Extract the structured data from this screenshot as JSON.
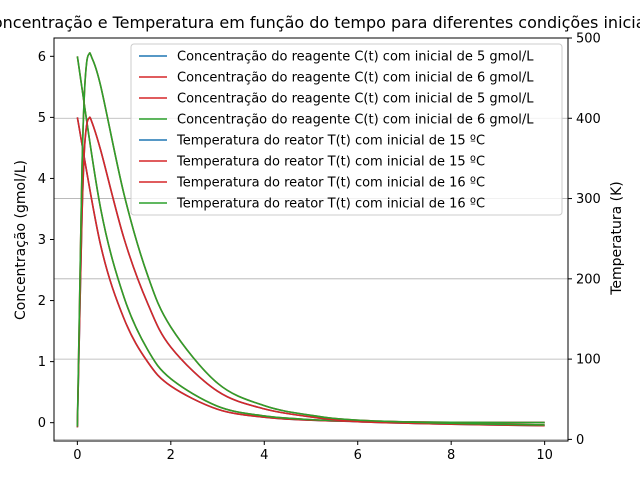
{
  "chart_data": {
    "type": "line",
    "title": "Concentração e Temperatura em função do tempo para diferentes condições iniciais",
    "xlabel": "",
    "ylabel_left": "Concentração (gmol/L)",
    "ylabel_right": "Temperatura (K)",
    "xlim": [
      -0.5,
      10.5
    ],
    "ylim_left": [
      -0.3,
      6.3
    ],
    "ylim_right": [
      -2,
      500
    ],
    "xticks": [
      0,
      2,
      4,
      6,
      8,
      10
    ],
    "yticks_left": [
      0,
      1,
      2,
      3,
      4,
      5,
      6
    ],
    "yticks_right": [
      0,
      100,
      200,
      300,
      400,
      500
    ],
    "grid": "horizontal lines at right-axis ticks",
    "legend_position": "upper-right",
    "series": [
      {
        "name": "Concentração do reagente C(t) com inicial de 5 gmol/L",
        "axis": "left",
        "color": "#1f77b4",
        "x": [
          0,
          0.5,
          1,
          1.5,
          2,
          3,
          4,
          5,
          6,
          8,
          10
        ],
        "y": [
          5,
          2.9,
          1.7,
          1.0,
          0.6,
          0.22,
          0.09,
          0.04,
          0.02,
          0.005,
          0.002
        ]
      },
      {
        "name": "Concentração do reagente C(t) com inicial de 6 gmol/L",
        "axis": "left",
        "color": "#d62728",
        "x": [
          0,
          0.5,
          1,
          1.5,
          2,
          3,
          4,
          5,
          6,
          8,
          10
        ],
        "y": [
          6,
          3.5,
          2.05,
          1.2,
          0.72,
          0.27,
          0.11,
          0.05,
          0.025,
          0.006,
          0.002
        ]
      },
      {
        "name": "Concentração do reagente C(t) com inicial de 5 gmol/L",
        "axis": "left",
        "color": "#d62728",
        "x": [
          0,
          0.5,
          1,
          1.5,
          2,
          3,
          4,
          5,
          6,
          8,
          10
        ],
        "y": [
          5,
          2.9,
          1.7,
          1.0,
          0.6,
          0.22,
          0.09,
          0.04,
          0.02,
          0.005,
          0.002
        ]
      },
      {
        "name": "Concentração do reagente C(t) com inicial de 6 gmol/L",
        "axis": "left",
        "color": "#2ca02c",
        "x": [
          0,
          0.5,
          1,
          1.5,
          2,
          3,
          4,
          5,
          6,
          8,
          10
        ],
        "y": [
          6,
          3.5,
          2.05,
          1.2,
          0.72,
          0.27,
          0.11,
          0.05,
          0.025,
          0.006,
          0.002
        ]
      },
      {
        "name": "Temperatura do reator T(t) com inicial de 15 ºC",
        "axis": "right",
        "color": "#1f77b4",
        "x": [
          0,
          0.05,
          0.1,
          0.15,
          0.2,
          0.25,
          0.3,
          0.5,
          1,
          1.5,
          2,
          3,
          4,
          5,
          6,
          8,
          10
        ],
        "y": [
          15,
          150,
          280,
          360,
          392,
          400,
          397,
          360,
          250,
          170,
          115,
          60,
          38,
          28,
          22,
          19,
          17
        ]
      },
      {
        "name": "Temperatura do reator T(t) com inicial de 15 ºC",
        "axis": "right",
        "color": "#d62728",
        "x": [
          0,
          0.05,
          0.1,
          0.15,
          0.2,
          0.25,
          0.3,
          0.5,
          1,
          1.5,
          2,
          3,
          4,
          5,
          6,
          8,
          10
        ],
        "y": [
          15,
          150,
          280,
          360,
          392,
          400,
          397,
          360,
          250,
          170,
          115,
          60,
          38,
          28,
          22,
          19,
          17
        ]
      },
      {
        "name": "Temperatura do reator T(t) com inicial de 16 ºC",
        "axis": "right",
        "color": "#d62728",
        "x": [
          0,
          0.05,
          0.1,
          0.15,
          0.2,
          0.25,
          0.3,
          0.5,
          1,
          1.5,
          2,
          3,
          4,
          5,
          6,
          8,
          10
        ],
        "y": [
          16,
          180,
          340,
          430,
          470,
          480,
          477,
          440,
          305,
          205,
          140,
          70,
          42,
          30,
          24,
          20,
          18
        ]
      },
      {
        "name": "Temperatura do reator T(t) com inicial de 16 ºC",
        "axis": "right",
        "color": "#2ca02c",
        "x": [
          0,
          0.05,
          0.1,
          0.15,
          0.2,
          0.25,
          0.3,
          0.5,
          1,
          1.5,
          2,
          3,
          4,
          5,
          6,
          8,
          10
        ],
        "y": [
          16,
          180,
          340,
          430,
          470,
          480,
          477,
          440,
          305,
          205,
          140,
          70,
          42,
          30,
          24,
          20,
          18
        ]
      }
    ]
  }
}
